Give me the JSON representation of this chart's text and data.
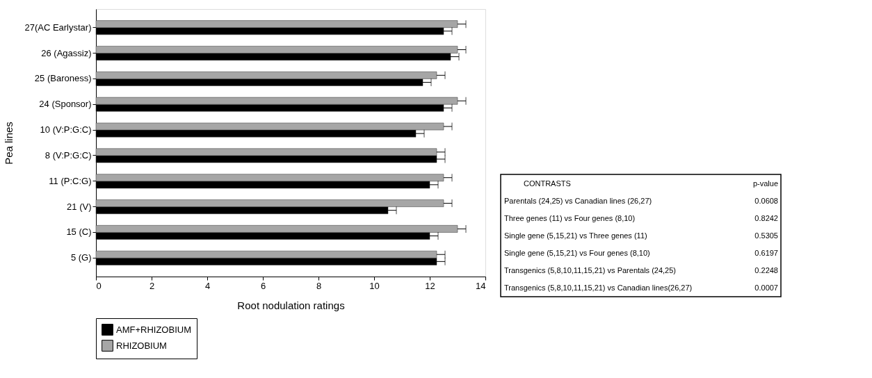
{
  "chart_data": [
    {
      "type": "bar",
      "orientation": "horizontal",
      "xlabel": "Root nodulation ratings",
      "ylabel": "Pea lines",
      "categories": [
        "27(AC Earlystar)",
        "26 (Agassiz)",
        "25 (Baroness)",
        "24 (Sponsor)",
        "10 (V:P:G:C)",
        "8 (V:P:G:C)",
        "11 (P:C:G)",
        "21 (V)",
        "15 (C)",
        "5 (G)"
      ],
      "series": [
        {
          "name": "AMF+RHIZOBIUM",
          "color": "#000000",
          "values": [
            12.5,
            12.75,
            11.75,
            12.5,
            11.5,
            12.25,
            12.0,
            10.5,
            12.0,
            12.25
          ],
          "errors": [
            [
              12.5,
              12.8
            ],
            [
              12.75,
              13.05
            ],
            [
              11.75,
              12.05
            ],
            [
              12.5,
              12.8
            ],
            [
              11.5,
              11.8
            ],
            [
              12.25,
              12.55
            ],
            [
              12.0,
              12.3
            ],
            [
              10.5,
              10.8
            ],
            [
              12.0,
              12.3
            ],
            [
              12.25,
              12.55
            ]
          ]
        },
        {
          "name": "RHIZOBIUM",
          "color": "#a6a6a6",
          "values": [
            13.0,
            13.0,
            12.25,
            13.0,
            12.5,
            12.25,
            12.5,
            12.5,
            13.0,
            12.25
          ],
          "errors": [
            [
              13.0,
              13.3
            ],
            [
              13.0,
              13.3
            ],
            [
              12.25,
              12.55
            ],
            [
              13.0,
              13.3
            ],
            [
              12.5,
              12.8
            ],
            [
              12.25,
              12.55
            ],
            [
              12.5,
              12.8
            ],
            [
              12.5,
              12.8
            ],
            [
              13.0,
              13.3
            ],
            [
              12.25,
              12.55
            ]
          ]
        }
      ],
      "xlim": [
        0,
        14
      ],
      "xticks": [
        0,
        2,
        4,
        6,
        8,
        10,
        12,
        14
      ],
      "grid": false,
      "legend": "bottom"
    },
    {
      "type": "other",
      "annotations": [
        "CONTRASTS",
        "p-value"
      ],
      "categories": [
        "Parentals (24,25) vs Canadian lines (26,27)",
        "Three genes (11) vs Four genes (8,10)",
        "Single gene (5,15,21) vs Three genes (11)",
        "Single gene (5,15,21) vs Four genes (8,10)",
        "Transgenics (5,8,10,11,15,21) vs Parentals (24,25)",
        "Transgenics (5,8,10,11,15,21) vs Canadian lines(26,27)"
      ],
      "values": [
        0.0608,
        0.8242,
        0.5305,
        0.6197,
        0.2248,
        0.0007
      ],
      "data_labels": true
    }
  ]
}
